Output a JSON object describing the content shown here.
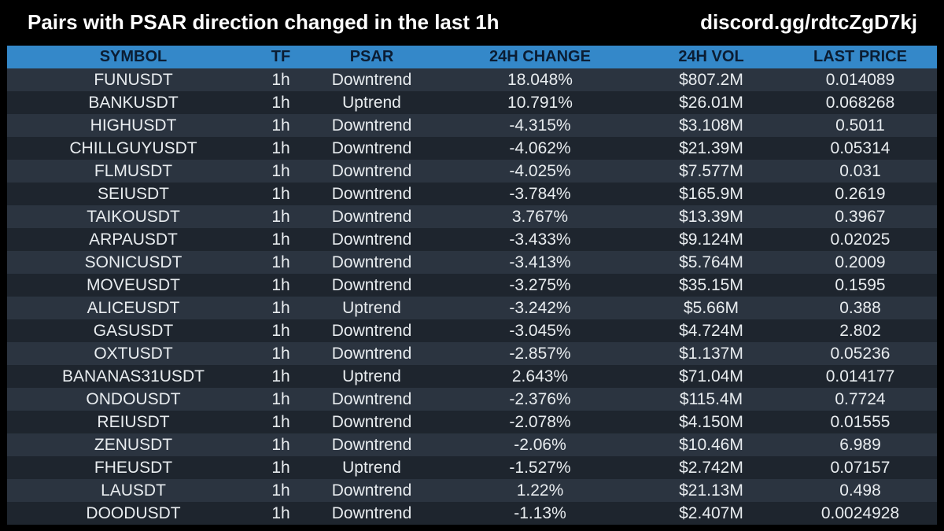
{
  "header": {
    "title": "Pairs with PSAR direction changed in the last 1h",
    "discord": "discord.gg/rdtcZgD7kj"
  },
  "table": {
    "columns": [
      "SYMBOL",
      "TF",
      "PSAR",
      "24H CHANGE",
      "24H VOL",
      "LAST PRICE"
    ],
    "rows": [
      [
        "FUNUSDT",
        "1h",
        "Downtrend",
        "18.048%",
        "$807.2M",
        "0.014089"
      ],
      [
        "BANKUSDT",
        "1h",
        "Uptrend",
        "10.791%",
        "$26.01M",
        "0.068268"
      ],
      [
        "HIGHUSDT",
        "1h",
        "Downtrend",
        "-4.315%",
        "$3.108M",
        "0.5011"
      ],
      [
        "CHILLGUYUSDT",
        "1h",
        "Downtrend",
        "-4.062%",
        "$21.39M",
        "0.05314"
      ],
      [
        "FLMUSDT",
        "1h",
        "Downtrend",
        "-4.025%",
        "$7.577M",
        "0.031"
      ],
      [
        "SEIUSDT",
        "1h",
        "Downtrend",
        "-3.784%",
        "$165.9M",
        "0.2619"
      ],
      [
        "TAIKOUSDT",
        "1h",
        "Downtrend",
        "3.767%",
        "$13.39M",
        "0.3967"
      ],
      [
        "ARPAUSDT",
        "1h",
        "Downtrend",
        "-3.433%",
        "$9.124M",
        "0.02025"
      ],
      [
        "SONICUSDT",
        "1h",
        "Downtrend",
        "-3.413%",
        "$5.764M",
        "0.2009"
      ],
      [
        "MOVEUSDT",
        "1h",
        "Downtrend",
        "-3.275%",
        "$35.15M",
        "0.1595"
      ],
      [
        "ALICEUSDT",
        "1h",
        "Uptrend",
        "-3.242%",
        "$5.66M",
        "0.388"
      ],
      [
        "GASUSDT",
        "1h",
        "Downtrend",
        "-3.045%",
        "$4.724M",
        "2.802"
      ],
      [
        "OXTUSDT",
        "1h",
        "Downtrend",
        "-2.857%",
        "$1.137M",
        "0.05236"
      ],
      [
        "BANANAS31USDT",
        "1h",
        "Uptrend",
        "2.643%",
        "$71.04M",
        "0.014177"
      ],
      [
        "ONDOUSDT",
        "1h",
        "Downtrend",
        "-2.376%",
        "$115.4M",
        "0.7724"
      ],
      [
        "REIUSDT",
        "1h",
        "Downtrend",
        "-2.078%",
        "$4.150M",
        "0.01555"
      ],
      [
        "ZENUSDT",
        "1h",
        "Downtrend",
        "-2.06%",
        "$10.46M",
        "6.989"
      ],
      [
        "FHEUSDT",
        "1h",
        "Uptrend",
        "-1.527%",
        "$2.742M",
        "0.07157"
      ],
      [
        "LAUSDT",
        "1h",
        "Downtrend",
        "1.22%",
        "$21.13M",
        "0.498"
      ],
      [
        "DOODUSDT",
        "1h",
        "Downtrend",
        "-1.13%",
        "$2.407M",
        "0.0024928"
      ]
    ]
  },
  "colors": {
    "background": "#000000",
    "header_row": "#3488c9",
    "row_odd": "#2b3440",
    "row_even": "#1e252e"
  }
}
